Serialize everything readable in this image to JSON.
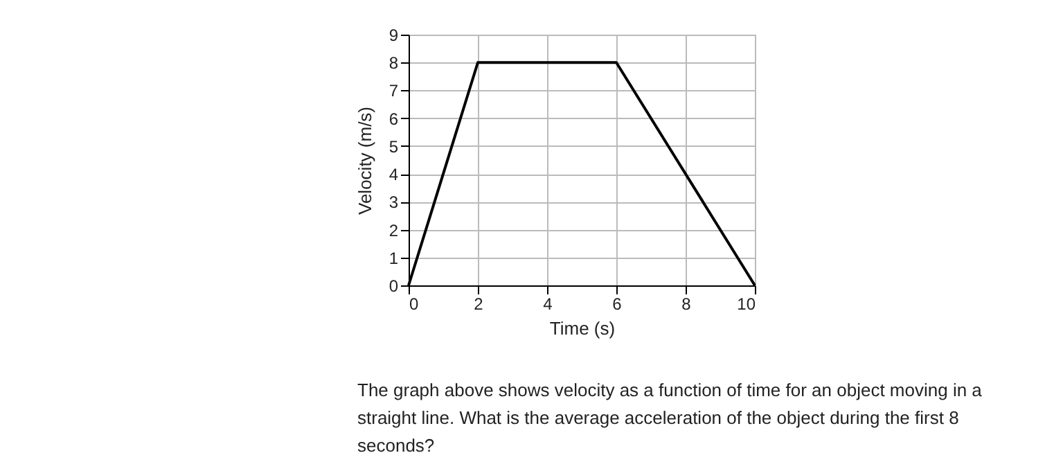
{
  "chart_data": {
    "type": "line",
    "xlabel": "Time (s)",
    "ylabel": "Velocity (m/s)",
    "x": [
      0,
      2,
      6,
      10
    ],
    "series": [
      {
        "color": "#000000",
        "values": [
          0,
          8,
          8,
          0
        ]
      }
    ],
    "xlim": [
      0,
      10
    ],
    "xticks": [
      0,
      2,
      4,
      6,
      8,
      10
    ],
    "ylim": [
      0,
      9
    ],
    "yticks": [
      0,
      1,
      2,
      3,
      4,
      5,
      6,
      7,
      8,
      9
    ],
    "grid": true,
    "marker": "none",
    "line_style": "solid",
    "annotations": [
      "The graph above shows velocity as a function of time for an object moving in a straight line. What is the average acceleration of the object during the first 8 seconds?"
    ]
  }
}
